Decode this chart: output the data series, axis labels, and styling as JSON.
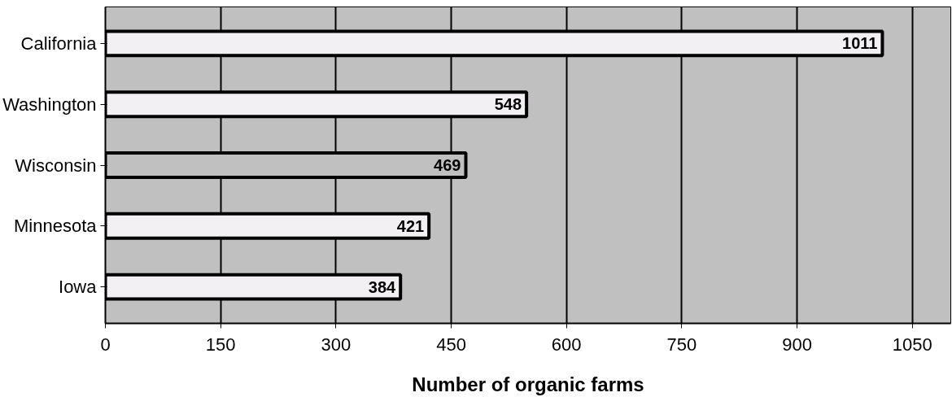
{
  "chart_data": {
    "type": "bar",
    "orientation": "horizontal",
    "categories": [
      "California",
      "Washington",
      "Wisconsin",
      "Minnesota",
      "Iowa"
    ],
    "values": [
      1011,
      548,
      469,
      421,
      384
    ],
    "colors": [
      "#f2f0f2",
      "#f2f0f2",
      "#c0c0c0",
      "#f2f0f2",
      "#f2f0f2"
    ],
    "xlabel": "Number of organic farms",
    "xlim": [
      0,
      1100
    ],
    "xticks": [
      0,
      150,
      300,
      450,
      600,
      750,
      900,
      1050
    ],
    "grid": "x",
    "data_labels": true
  }
}
